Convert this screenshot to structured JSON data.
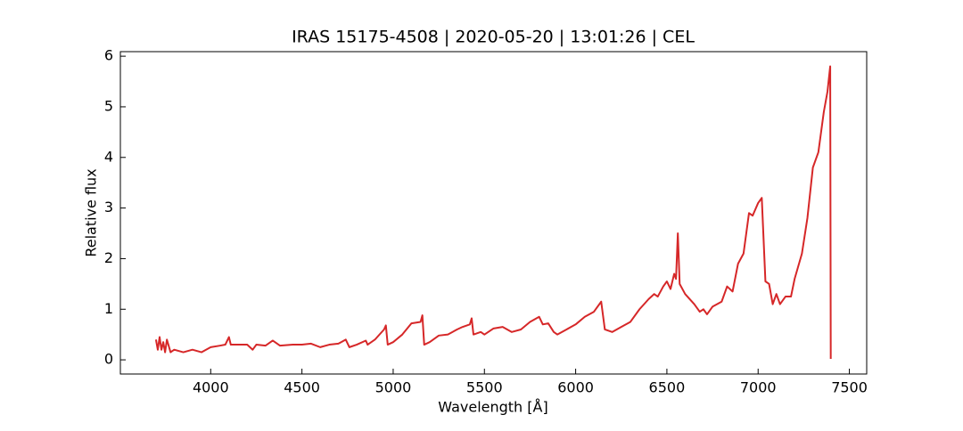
{
  "chart_data": {
    "type": "line",
    "title": "IRAS 15175-4508 | 2020-05-20 | 13:01:26 | CEL",
    "x_label": "Wavelength [Å]",
    "y_label": "Relative flux",
    "xlim": [
      3505,
      7595
    ],
    "ylim": [
      -0.28,
      6.09
    ],
    "xticks": [
      4000,
      4500,
      5000,
      5500,
      6000,
      6500,
      7000,
      7500
    ],
    "yticks": [
      0,
      1,
      2,
      3,
      4,
      5,
      6
    ],
    "x": [
      3700,
      3710,
      3720,
      3730,
      3740,
      3750,
      3760,
      3780,
      3800,
      3850,
      3900,
      3950,
      4000,
      4050,
      4080,
      4100,
      4110,
      4150,
      4200,
      4230,
      4250,
      4300,
      4340,
      4380,
      4450,
      4500,
      4550,
      4600,
      4650,
      4700,
      4740,
      4760,
      4800,
      4850,
      4860,
      4900,
      4950,
      4960,
      4970,
      5000,
      5050,
      5100,
      5150,
      5160,
      5170,
      5200,
      5250,
      5300,
      5350,
      5380,
      5420,
      5430,
      5440,
      5480,
      5500,
      5550,
      5600,
      5650,
      5700,
      5750,
      5800,
      5820,
      5850,
      5880,
      5900,
      5950,
      6000,
      6050,
      6100,
      6140,
      6160,
      6200,
      6250,
      6300,
      6350,
      6400,
      6430,
      6450,
      6480,
      6500,
      6520,
      6540,
      6550,
      6560,
      6570,
      6600,
      6650,
      6680,
      6700,
      6720,
      6750,
      6800,
      6830,
      6860,
      6890,
      6920,
      6950,
      6970,
      7000,
      7020,
      7040,
      7060,
      7080,
      7100,
      7120,
      7150,
      7180,
      7200,
      7240,
      7270,
      7300,
      7330,
      7360,
      7380,
      7395,
      7398
    ],
    "series": [
      {
        "name": "flux",
        "color": "#d62728",
        "values": [
          0.4,
          0.2,
          0.45,
          0.2,
          0.35,
          0.15,
          0.4,
          0.15,
          0.2,
          0.15,
          0.2,
          0.15,
          0.25,
          0.28,
          0.3,
          0.45,
          0.3,
          0.3,
          0.3,
          0.2,
          0.3,
          0.28,
          0.38,
          0.28,
          0.3,
          0.3,
          0.32,
          0.25,
          0.3,
          0.32,
          0.4,
          0.25,
          0.3,
          0.38,
          0.3,
          0.4,
          0.6,
          0.68,
          0.3,
          0.35,
          0.5,
          0.72,
          0.75,
          0.88,
          0.3,
          0.35,
          0.48,
          0.5,
          0.6,
          0.65,
          0.7,
          0.82,
          0.5,
          0.55,
          0.5,
          0.62,
          0.65,
          0.55,
          0.6,
          0.75,
          0.85,
          0.7,
          0.72,
          0.55,
          0.5,
          0.6,
          0.7,
          0.85,
          0.95,
          1.15,
          0.6,
          0.55,
          0.65,
          0.75,
          1.0,
          1.2,
          1.3,
          1.25,
          1.45,
          1.55,
          1.4,
          1.7,
          1.6,
          2.5,
          1.5,
          1.3,
          1.1,
          0.95,
          1.0,
          0.9,
          1.05,
          1.15,
          1.45,
          1.35,
          1.9,
          2.1,
          2.9,
          2.85,
          3.1,
          3.2,
          1.55,
          1.5,
          1.1,
          1.3,
          1.1,
          1.25,
          1.25,
          1.6,
          2.1,
          2.8,
          3.8,
          4.1,
          4.9,
          5.3,
          5.8,
          0.02
        ]
      }
    ]
  }
}
